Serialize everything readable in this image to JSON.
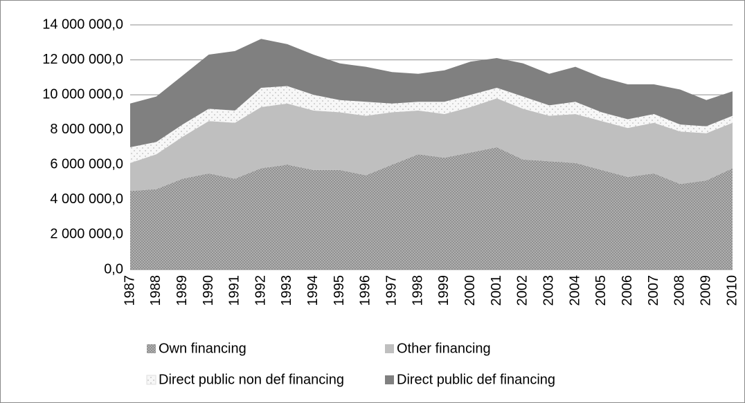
{
  "chart_data": {
    "type": "stacked_area",
    "categories": [
      "1987",
      "1988",
      "1989",
      "1990",
      "1991",
      "1992",
      "1993",
      "1994",
      "1995",
      "1996",
      "1997",
      "1998",
      "1999",
      "2000",
      "2001",
      "2002",
      "2003",
      "2004",
      "2005",
      "2006",
      "2007",
      "2008",
      "2009",
      "2010"
    ],
    "series": [
      {
        "name": "Own financing",
        "color": "#9c9c9c",
        "pattern": "dots",
        "values": [
          4500000,
          4600000,
          5200000,
          5500000,
          5200000,
          5800000,
          6000000,
          5700000,
          5700000,
          5400000,
          6000000,
          6600000,
          6400000,
          6700000,
          7000000,
          6300000,
          6200000,
          6100000,
          5700000,
          5300000,
          5500000,
          4900000,
          5100000,
          5800000
        ]
      },
      {
        "name": "Other financing",
        "color": "#bfbfbf",
        "pattern": "solid",
        "values": [
          1600000,
          2000000,
          2400000,
          3000000,
          3200000,
          3500000,
          3500000,
          3400000,
          3300000,
          3400000,
          3000000,
          2500000,
          2500000,
          2600000,
          2800000,
          2900000,
          2600000,
          2800000,
          2800000,
          2800000,
          2900000,
          3000000,
          2700000,
          2600000
        ]
      },
      {
        "name": "Direct public non def financing",
        "color": "#f2f2f2",
        "pattern": "sparse",
        "values": [
          900000,
          700000,
          700000,
          700000,
          700000,
          1100000,
          1000000,
          900000,
          700000,
          800000,
          500000,
          500000,
          700000,
          700000,
          600000,
          700000,
          600000,
          700000,
          500000,
          500000,
          500000,
          400000,
          400000,
          400000
        ]
      },
      {
        "name": "Direct public def financing",
        "color": "#808080",
        "pattern": "solid",
        "values": [
          2500000,
          2600000,
          2800000,
          3100000,
          3400000,
          2800000,
          2400000,
          2300000,
          2100000,
          2000000,
          1800000,
          1600000,
          1800000,
          1900000,
          1700000,
          1900000,
          1800000,
          2000000,
          2000000,
          2000000,
          1700000,
          2000000,
          1500000,
          1400000
        ]
      }
    ],
    "ylim": [
      0,
      14000000
    ],
    "yticks": [
      {
        "value": 0,
        "label": "0,0"
      },
      {
        "value": 2000000,
        "label": "2 000 000,0"
      },
      {
        "value": 4000000,
        "label": "4 000 000,0"
      },
      {
        "value": 6000000,
        "label": "6 000 000,0"
      },
      {
        "value": 8000000,
        "label": "8 000 000,0"
      },
      {
        "value": 10000000,
        "label": "10 000 000,0"
      },
      {
        "value": 12000000,
        "label": "12 000 000,0"
      },
      {
        "value": 14000000,
        "label": "14 000 000,0"
      }
    ],
    "grid": true,
    "legend": "bottom"
  }
}
